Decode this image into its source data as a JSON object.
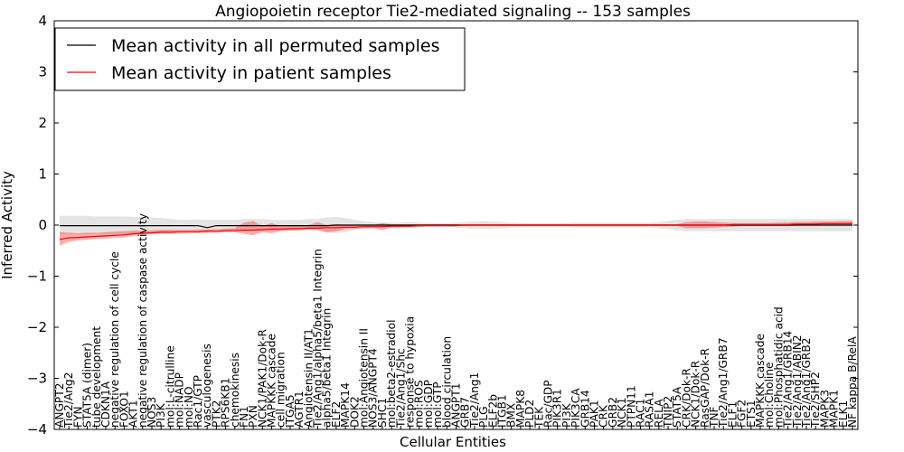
{
  "chart_data": {
    "type": "line",
    "title": "Angiopoietin receptor Tie2-mediated signaling -- 153 samples",
    "xlabel": "Cellular Entities",
    "ylabel": "Inferred Activity",
    "ylim": [
      -4,
      4
    ],
    "yticks": [
      "4",
      "3",
      "2",
      "1",
      "0",
      "−1",
      "−2",
      "−3",
      "−4"
    ],
    "ytick_values": [
      4,
      3,
      2,
      1,
      0,
      -1,
      -2,
      -3,
      -4
    ],
    "legend_placement": "top-left",
    "categories": [
      "ANGPT2",
      "Tie2/Ang2",
      "FYN",
      "STAT5A (dimer)",
      "tube development",
      "CDKN1A",
      "negative regulation of cell cycle",
      "FOXO1",
      "AKT1",
      "negative regulation of caspase activity",
      "NOS3",
      "PI3K",
      "mol:L-citrulline",
      "mol:NADP",
      "mol:NO",
      "Rac1/GTP",
      "vasculogenesis",
      "PTK2",
      "RPS6KB1",
      "chemokinesis",
      "FN1",
      "PXN",
      "NCK1/PAK1/Dok-R",
      "MAPKKK cascade",
      "cell migration",
      "ITGA5",
      "AGTR1",
      "Angiotensin II/AT1",
      "Tie2/Ang1/alpha5/beta1 Integrin",
      "alpha5/beta1 Integrin",
      "ELF2",
      "MAPK14",
      "DOK2",
      "mol:Angiotensin II",
      "NOS3/ANGPT4",
      "SHC1",
      "mol:beta2-estradiol",
      "Tie2/Ang1/Shc",
      "response to hypoxia",
      "mol:ROS",
      "mol:GDP",
      "mol:GTP",
      "blood circulation",
      "ANGPT1",
      "GRB7",
      "Tie2/Ang1",
      "PLG",
      "ELF2b",
      "ITGB1",
      "BMX",
      "MAPK8",
      "PLD2",
      "TEK",
      "Rac/GDP",
      "PIK3R1",
      "PI3K",
      "PIK3CA",
      "GRB14",
      "PAK1",
      "CRK",
      "GRB2",
      "NCK1",
      "PTPN11",
      "RAC1",
      "RASA1",
      "RELA",
      "TNIP2",
      "STAT5A",
      "CRK/Dok-R",
      "NCK1/Dok-R",
      "RasGAP/Dok-R",
      "TNF",
      "Tie2/Ang1/GRB7",
      "ELF1",
      "FGF2",
      "ETS1",
      "MAPKKK cascade",
      "mol:Choline",
      "mol:Phosphatidic acid",
      "Tie2/Ang1/GRB14",
      "Tie2/Ang1/ABIN2",
      "Tie2/Ang1/GRB2",
      "Tie2/SHP2",
      "MAPK3",
      "MAPK1",
      "ELK1",
      "NF kappa B/RelA"
    ],
    "series": [
      {
        "name": "Mean activity in all permuted samples",
        "color": "#000000",
        "values": [
          -0.01,
          -0.01,
          -0.01,
          -0.01,
          -0.01,
          -0.01,
          -0.01,
          -0.01,
          -0.01,
          -0.01,
          -0.01,
          -0.01,
          -0.01,
          -0.01,
          -0.01,
          -0.01,
          -0.05,
          -0.01,
          -0.01,
          -0.01,
          -0.01,
          -0.01,
          -0.01,
          -0.01,
          -0.01,
          -0.01,
          -0.01,
          -0.01,
          -0.01,
          -0.01,
          0.0,
          0.0,
          0.0,
          0.0,
          0.0,
          0.0,
          0.0,
          0.0,
          0.0,
          0.0,
          0.0,
          0.0,
          0.0,
          0.0,
          0.0,
          0.0,
          0.0,
          0.0,
          0.0,
          0.0,
          0.0,
          0.0,
          0.0,
          0.0,
          0.0,
          0.0,
          0.0,
          0.0,
          0.0,
          0.0,
          0.0,
          0.0,
          0.0,
          0.0,
          0.0,
          0.0,
          0.0,
          0.0,
          0.0,
          0.0,
          0.0,
          0.0,
          0.0,
          0.0,
          0.0,
          0.0,
          0.0,
          0.0,
          0.0,
          0.0,
          0.0,
          0.0,
          0.0,
          0.0,
          0.0,
          0.0,
          0.0
        ],
        "band_lower": [
          -0.18,
          -0.18,
          -0.18,
          -0.18,
          -0.17,
          -0.17,
          -0.17,
          -0.17,
          -0.16,
          -0.16,
          -0.15,
          -0.14,
          -0.12,
          -0.1,
          -0.1,
          -0.11,
          -0.14,
          -0.1,
          -0.1,
          -0.1,
          -0.12,
          -0.1,
          -0.1,
          -0.1,
          -0.1,
          -0.1,
          -0.1,
          -0.1,
          -0.12,
          -0.15,
          -0.16,
          -0.14,
          -0.1,
          -0.08,
          -0.06,
          -0.05,
          -0.05,
          -0.05,
          -0.06,
          -0.05,
          -0.04,
          -0.04,
          -0.04,
          -0.05,
          -0.06,
          -0.07,
          -0.08,
          -0.07,
          -0.06,
          -0.05,
          -0.04,
          -0.04,
          -0.04,
          -0.04,
          -0.04,
          -0.04,
          -0.05,
          -0.05,
          -0.05,
          -0.05,
          -0.05,
          -0.05,
          -0.05,
          -0.05,
          -0.05,
          -0.06,
          -0.08,
          -0.1,
          -0.12,
          -0.12,
          -0.12,
          -0.12,
          -0.12,
          -0.12,
          -0.12,
          -0.12,
          -0.12,
          -0.12,
          -0.12,
          -0.12,
          -0.12,
          -0.12,
          -0.12,
          -0.12,
          -0.12,
          -0.12,
          -0.12
        ],
        "band_upper": [
          0.18,
          0.18,
          0.18,
          0.18,
          0.17,
          0.17,
          0.17,
          0.17,
          0.16,
          0.16,
          0.15,
          0.14,
          0.12,
          0.1,
          0.1,
          0.11,
          0.1,
          0.1,
          0.1,
          0.1,
          0.12,
          0.12,
          0.12,
          0.1,
          0.1,
          0.1,
          0.1,
          0.12,
          0.12,
          0.15,
          0.16,
          0.14,
          0.1,
          0.08,
          0.06,
          0.05,
          0.05,
          0.05,
          0.06,
          0.05,
          0.04,
          0.04,
          0.04,
          0.05,
          0.06,
          0.07,
          0.08,
          0.07,
          0.06,
          0.05,
          0.04,
          0.04,
          0.04,
          0.04,
          0.04,
          0.04,
          0.05,
          0.05,
          0.05,
          0.05,
          0.05,
          0.05,
          0.05,
          0.05,
          0.05,
          0.06,
          0.08,
          0.1,
          0.12,
          0.12,
          0.12,
          0.12,
          0.12,
          0.12,
          0.12,
          0.12,
          0.12,
          0.12,
          0.12,
          0.12,
          0.12,
          0.12,
          0.12,
          0.12,
          0.12,
          0.12,
          0.12
        ],
        "band_color": "#bbbbbb"
      },
      {
        "name": "Mean activity in patient samples",
        "color": "#ff0000",
        "values": [
          -0.28,
          -0.25,
          -0.24,
          -0.23,
          -0.22,
          -0.21,
          -0.2,
          -0.19,
          -0.17,
          -0.16,
          -0.15,
          -0.14,
          -0.14,
          -0.13,
          -0.13,
          -0.13,
          -0.12,
          -0.12,
          -0.11,
          -0.11,
          -0.1,
          -0.1,
          -0.09,
          -0.08,
          -0.08,
          -0.07,
          -0.07,
          -0.06,
          -0.06,
          -0.05,
          -0.05,
          -0.04,
          -0.04,
          -0.03,
          -0.03,
          -0.03,
          -0.02,
          -0.02,
          -0.02,
          -0.01,
          -0.01,
          -0.01,
          -0.01,
          -0.01,
          0.0,
          0.0,
          0.0,
          0.0,
          0.0,
          0.0,
          0.0,
          0.0,
          0.0,
          0.0,
          0.0,
          0.0,
          0.0,
          0.0,
          0.0,
          0.0,
          0.0,
          0.0,
          0.0,
          0.0,
          0.0,
          0.0,
          0.0,
          0.0,
          0.0,
          0.0,
          0.0,
          0.0,
          0.0,
          0.01,
          0.01,
          0.01,
          0.01,
          0.01,
          0.01,
          0.01,
          0.02,
          0.02,
          0.02,
          0.03,
          0.03,
          0.03,
          0.03
        ],
        "band_lower": [
          -0.4,
          -0.33,
          -0.3,
          -0.29,
          -0.27,
          -0.26,
          -0.25,
          -0.24,
          -0.21,
          -0.19,
          -0.18,
          -0.17,
          -0.17,
          -0.17,
          -0.16,
          -0.16,
          -0.15,
          -0.15,
          -0.14,
          -0.14,
          -0.17,
          -0.2,
          -0.14,
          -0.16,
          -0.12,
          -0.11,
          -0.1,
          -0.09,
          -0.09,
          -0.14,
          -0.12,
          -0.08,
          -0.07,
          -0.06,
          -0.06,
          -0.1,
          -0.05,
          -0.05,
          -0.04,
          -0.03,
          -0.02,
          -0.02,
          -0.02,
          -0.02,
          -0.02,
          -0.02,
          -0.02,
          -0.02,
          -0.02,
          -0.02,
          -0.02,
          -0.02,
          -0.02,
          -0.02,
          -0.02,
          -0.02,
          -0.02,
          -0.02,
          -0.02,
          -0.02,
          -0.02,
          -0.02,
          -0.02,
          -0.02,
          -0.02,
          -0.02,
          -0.02,
          -0.02,
          -0.06,
          -0.06,
          -0.06,
          -0.05,
          -0.04,
          -0.03,
          -0.02,
          -0.02,
          -0.02,
          -0.02,
          -0.02,
          -0.02,
          -0.01,
          -0.01,
          -0.01,
          -0.01,
          -0.01,
          -0.01,
          -0.01
        ],
        "band_upper": [
          -0.14,
          -0.15,
          -0.16,
          -0.15,
          -0.15,
          -0.14,
          -0.13,
          -0.12,
          -0.11,
          -0.11,
          -0.1,
          -0.09,
          -0.09,
          -0.09,
          -0.09,
          -0.09,
          -0.08,
          -0.08,
          -0.07,
          -0.06,
          0.05,
          0.08,
          -0.02,
          0.04,
          -0.02,
          -0.02,
          -0.02,
          0.0,
          0.06,
          0.0,
          0.02,
          0.0,
          0.0,
          0.0,
          0.0,
          0.04,
          0.01,
          0.01,
          0.01,
          0.01,
          0.01,
          0.01,
          0.01,
          0.01,
          0.02,
          0.02,
          0.02,
          0.02,
          0.02,
          0.02,
          0.02,
          0.02,
          0.02,
          0.02,
          0.02,
          0.02,
          0.02,
          0.02,
          0.02,
          0.02,
          0.02,
          0.02,
          0.02,
          0.02,
          0.02,
          0.02,
          0.02,
          0.02,
          0.06,
          0.07,
          0.07,
          0.06,
          0.05,
          0.04,
          0.04,
          0.04,
          0.04,
          0.04,
          0.05,
          0.05,
          0.06,
          0.06,
          0.07,
          0.07,
          0.07,
          0.08,
          0.08
        ],
        "band_color": "#ff0000"
      }
    ]
  }
}
